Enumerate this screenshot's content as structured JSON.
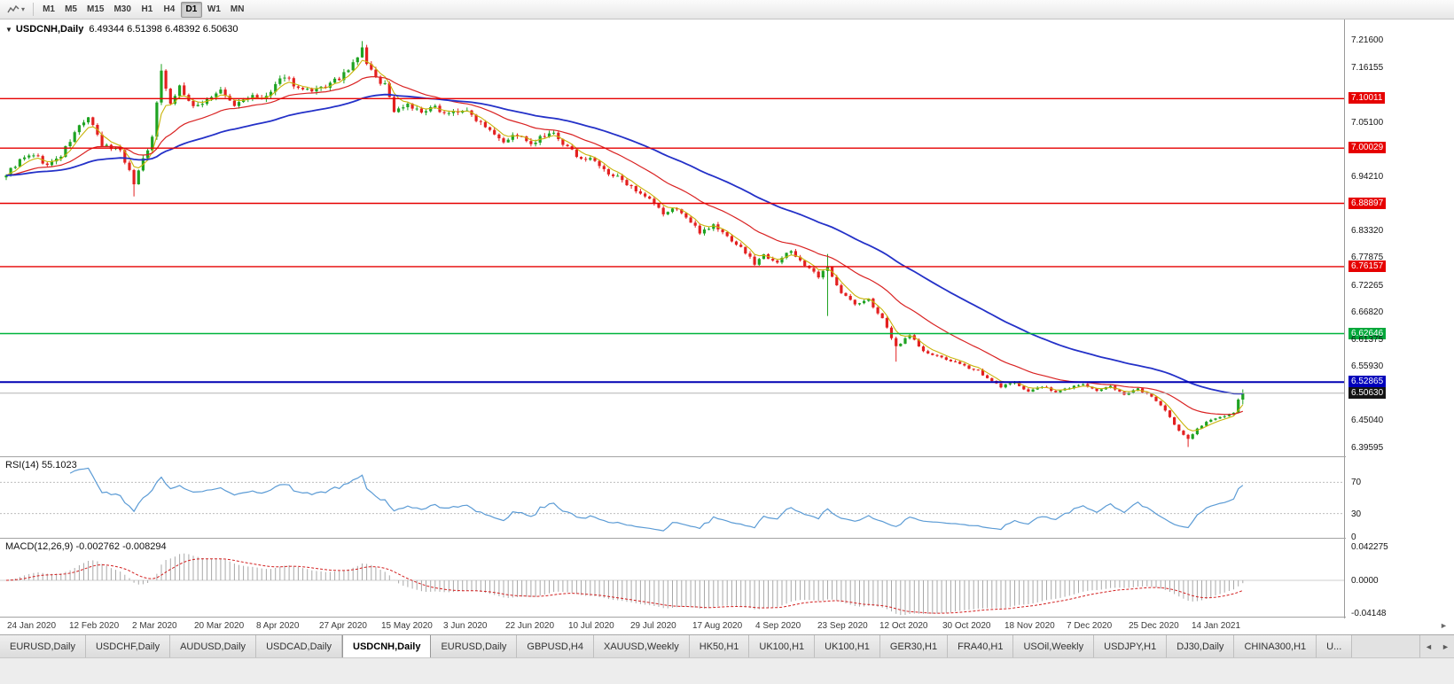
{
  "toolbar": {
    "timeframes": [
      "M1",
      "M5",
      "M15",
      "M30",
      "H1",
      "H4",
      "D1",
      "W1",
      "MN"
    ],
    "active_timeframe": "D1"
  },
  "icons": {
    "chart_dropdown": "▾",
    "title_collapse": "▼",
    "tab_scroll_left": "◄",
    "tab_scroll_right": "►",
    "axis_forward": "►"
  },
  "chart": {
    "symbol_title": "USDCNH,Daily",
    "ohlc_text": "6.49344 6.51398 6.48392 6.50630"
  },
  "indicators": {
    "rsi_label": "RSI(14) 55.1023",
    "macd_label": "MACD(12,26,9) -0.002762 -0.008294"
  },
  "chart_data": {
    "type": "candlestick",
    "symbol": "USDCNH",
    "timeframe": "Daily",
    "current_bar": {
      "open": 6.49344,
      "high": 6.51398,
      "low": 6.48392,
      "close": 6.5063
    },
    "bars": 272,
    "price_axis": {
      "min": 6.381,
      "max": 7.256
    },
    "axis_labels": [
      {
        "text": "7.21600",
        "price": 7.216,
        "style": "normal"
      },
      {
        "text": "7.16155",
        "price": 7.16155,
        "style": "normal"
      },
      {
        "text": "7.10011",
        "price": 7.10011,
        "style": "red"
      },
      {
        "text": "7.05100",
        "price": 7.051,
        "style": "normal"
      },
      {
        "text": "7.00029",
        "price": 7.00029,
        "style": "red"
      },
      {
        "text": "6.94210",
        "price": 6.9421,
        "style": "normal"
      },
      {
        "text": "6.88897",
        "price": 6.88897,
        "style": "red"
      },
      {
        "text": "6.83320",
        "price": 6.8332,
        "style": "normal"
      },
      {
        "text": "6.77875",
        "price": 6.77875,
        "style": "normal"
      },
      {
        "text": "6.76157",
        "price": 6.76157,
        "style": "red"
      },
      {
        "text": "6.72265",
        "price": 6.72265,
        "style": "normal"
      },
      {
        "text": "6.66820",
        "price": 6.6682,
        "style": "normal"
      },
      {
        "text": "6.62646",
        "price": 6.62646,
        "style": "green"
      },
      {
        "text": "6.61375",
        "price": 6.61375,
        "style": "normal"
      },
      {
        "text": "6.55930",
        "price": 6.5593,
        "style": "normal"
      },
      {
        "text": "6.52865",
        "price": 6.52865,
        "style": "blue"
      },
      {
        "text": "6.50630",
        "price": 6.5063,
        "style": "current"
      },
      {
        "text": "6.45040",
        "price": 6.4504,
        "style": "normal"
      },
      {
        "text": "6.39595",
        "price": 6.39595,
        "style": "normal"
      }
    ],
    "hlines": [
      {
        "price": 7.10011,
        "color": "#e60000",
        "width": 1.4
      },
      {
        "price": 7.00029,
        "color": "#e60000",
        "width": 1.4
      },
      {
        "price": 6.88897,
        "color": "#e60000",
        "width": 1.4
      },
      {
        "price": 6.76157,
        "color": "#e60000",
        "width": 1.4
      },
      {
        "price": 6.62646,
        "color": "#00b43c",
        "width": 1.5
      },
      {
        "price": 6.52865,
        "color": "#0000b4",
        "width": 2
      },
      {
        "price": 6.5063,
        "color": "#b2b2b2",
        "width": 1
      }
    ],
    "anchors": [
      [
        0,
        6.948
      ],
      [
        3,
        6.975
      ],
      [
        6,
        6.988
      ],
      [
        9,
        6.965
      ],
      [
        12,
        6.985
      ],
      [
        16,
        7.045
      ],
      [
        18,
        7.062
      ],
      [
        21,
        7.005
      ],
      [
        25,
        6.998
      ],
      [
        28,
        6.93
      ],
      [
        30,
        6.98
      ],
      [
        32,
        7.02
      ],
      [
        34,
        7.16
      ],
      [
        36,
        7.09
      ],
      [
        38,
        7.125
      ],
      [
        41,
        7.08
      ],
      [
        44,
        7.1
      ],
      [
        47,
        7.115
      ],
      [
        50,
        7.085
      ],
      [
        53,
        7.105
      ],
      [
        56,
        7.098
      ],
      [
        58,
        7.112
      ],
      [
        61,
        7.148
      ],
      [
        64,
        7.12
      ],
      [
        67,
        7.112
      ],
      [
        70,
        7.125
      ],
      [
        72,
        7.135
      ],
      [
        75,
        7.155
      ],
      [
        78,
        7.2
      ],
      [
        79,
        7.172
      ],
      [
        81,
        7.14
      ],
      [
        83,
        7.13
      ],
      [
        85,
        7.075
      ],
      [
        88,
        7.09
      ],
      [
        91,
        7.07
      ],
      [
        94,
        7.082
      ],
      [
        97,
        7.07
      ],
      [
        100,
        7.078
      ],
      [
        103,
        7.06
      ],
      [
        106,
        7.04
      ],
      [
        109,
        7.015
      ],
      [
        112,
        7.028
      ],
      [
        115,
        7.005
      ],
      [
        117,
        7.02
      ],
      [
        120,
        7.028
      ],
      [
        123,
        7.0
      ],
      [
        126,
        6.98
      ],
      [
        129,
        6.975
      ],
      [
        132,
        6.945
      ],
      [
        135,
        6.94
      ],
      [
        138,
        6.91
      ],
      [
        141,
        6.895
      ],
      [
        144,
        6.868
      ],
      [
        147,
        6.88
      ],
      [
        150,
        6.85
      ],
      [
        152,
        6.832
      ],
      [
        155,
        6.845
      ],
      [
        158,
        6.822
      ],
      [
        161,
        6.8
      ],
      [
        164,
        6.768
      ],
      [
        166,
        6.785
      ],
      [
        169,
        6.772
      ],
      [
        172,
        6.793
      ],
      [
        175,
        6.765
      ],
      [
        178,
        6.74
      ],
      [
        180,
        6.76
      ],
      [
        183,
        6.71
      ],
      [
        186,
        6.685
      ],
      [
        189,
        6.695
      ],
      [
        192,
        6.655
      ],
      [
        195,
        6.6
      ],
      [
        198,
        6.625
      ],
      [
        201,
        6.59
      ],
      [
        204,
        6.58
      ],
      [
        207,
        6.572
      ],
      [
        210,
        6.56
      ],
      [
        213,
        6.553
      ],
      [
        215,
        6.535
      ],
      [
        218,
        6.52
      ],
      [
        221,
        6.528
      ],
      [
        224,
        6.51
      ],
      [
        227,
        6.52
      ],
      [
        230,
        6.508
      ],
      [
        233,
        6.518
      ],
      [
        236,
        6.525
      ],
      [
        239,
        6.51
      ],
      [
        242,
        6.52
      ],
      [
        245,
        6.505
      ],
      [
        248,
        6.515
      ],
      [
        251,
        6.5
      ],
      [
        254,
        6.47
      ],
      [
        257,
        6.43
      ],
      [
        259,
        6.415
      ],
      [
        261,
        6.435
      ],
      [
        263,
        6.448
      ],
      [
        265,
        6.455
      ],
      [
        267,
        6.46
      ],
      [
        269,
        6.468
      ],
      [
        270,
        6.49344
      ],
      [
        271,
        6.5063
      ]
    ],
    "spikes": [
      {
        "bar": 28,
        "low": 6.903
      },
      {
        "bar": 34,
        "high": 7.17
      },
      {
        "bar": 78,
        "high": 7.216
      },
      {
        "bar": 180,
        "high": 6.787,
        "low": 6.662
      },
      {
        "bar": 195,
        "low": 6.57
      },
      {
        "bar": 259,
        "low": 6.398
      }
    ],
    "dates": [
      "24 Jan 2020",
      "12 Feb 2020",
      "2 Mar 2020",
      "20 Mar 2020",
      "8 Apr 2020",
      "27 Apr 2020",
      "15 May 2020",
      "3 Jun 2020",
      "22 Jun 2020",
      "10 Jul 2020",
      "29 Jul 2020",
      "17 Aug 2020",
      "4 Sep 2020",
      "23 Sep 2020",
      "12 Oct 2020",
      "30 Oct 2020",
      "18 Nov 2020",
      "7 Dec 2020",
      "25 Dec 2020",
      "14 Jan 2021"
    ],
    "rsi": {
      "period": 14,
      "value": 55.1023,
      "color": "#5b9bd5",
      "levels": [
        {
          "text": "70",
          "value": 70
        },
        {
          "text": "30",
          "value": 30
        },
        {
          "text": "0",
          "value": 0
        }
      ]
    },
    "macd": {
      "fast": 12,
      "slow": 26,
      "signal": 9,
      "value": -0.002762,
      "signal_value": -0.008294,
      "hist_color": "#a8a8a8",
      "signal_color": "#d22020",
      "axis_labels": [
        {
          "text": "0.042275",
          "value": 0.042275
        },
        {
          "text": "0.0000",
          "value": 0
        },
        {
          "text": "-0.04148",
          "value": -0.04148
        }
      ]
    },
    "candle_colors": {
      "up": "#1fa322",
      "down": "#e32020"
    },
    "ma_colors": {
      "fast": "#c9b40a",
      "mid": "#d92222",
      "slow": "#2431c8"
    }
  },
  "tabs": {
    "items": [
      {
        "label": "EURUSD,Daily",
        "active": false
      },
      {
        "label": "USDCHF,Daily",
        "active": false
      },
      {
        "label": "AUDUSD,Daily",
        "active": false
      },
      {
        "label": "USDCAD,Daily",
        "active": false
      },
      {
        "label": "USDCNH,Daily",
        "active": true
      },
      {
        "label": "EURUSD,Daily",
        "active": false
      },
      {
        "label": "GBPUSD,H4",
        "active": false
      },
      {
        "label": "XAUUSD,Weekly",
        "active": false
      },
      {
        "label": "HK50,H1",
        "active": false
      },
      {
        "label": "UK100,H1",
        "active": false
      },
      {
        "label": "UK100,H1",
        "active": false
      },
      {
        "label": "GER30,H1",
        "active": false
      },
      {
        "label": "FRA40,H1",
        "active": false
      },
      {
        "label": "USOil,Weekly",
        "active": false
      },
      {
        "label": "USDJPY,H1",
        "active": false
      },
      {
        "label": "DJ30,Daily",
        "active": false
      },
      {
        "label": "CHINA300,H1",
        "active": false
      },
      {
        "label": "U...",
        "active": false
      }
    ]
  }
}
